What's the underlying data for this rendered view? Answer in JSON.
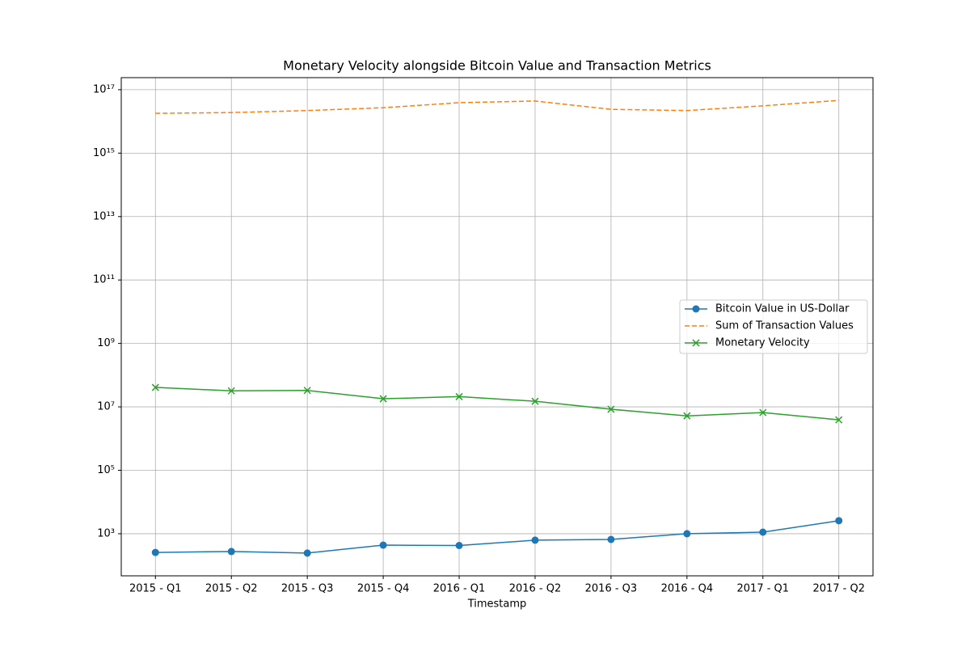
{
  "chart_data": {
    "type": "line",
    "title": "Monetary Velocity alongside Bitcoin Value and Transaction Metrics",
    "xlabel": "Timestamp",
    "categories": [
      "2015 - Q1",
      "2015 - Q2",
      "2015 - Q3",
      "2015 - Q4",
      "2016 - Q1",
      "2016 - Q2",
      "2016 - Q3",
      "2016 - Q4",
      "2017 - Q1",
      "2017 - Q2"
    ],
    "series": [
      {
        "name": "Bitcoin Value in US-Dollar",
        "color": "#1f77b4",
        "marker": "circle",
        "dash": "solid",
        "values": [
          257,
          275,
          245,
          437,
          425,
          625,
          660,
          1000,
          1120,
          2570
        ]
      },
      {
        "name": "Sum of Transaction Values",
        "color": "#ff7f0e",
        "marker": "none",
        "dash": "dashed",
        "values": [
          1.8e+16,
          1.9e+16,
          2.2e+16,
          2.7e+16,
          3.9e+16,
          4.4e+16,
          2.4e+16,
          2.2e+16,
          3.1e+16,
          4.6e+16
        ]
      },
      {
        "name": "Monetary Velocity",
        "color": "#2ca02c",
        "marker": "x",
        "dash": "solid",
        "values": [
          41000000.0,
          32000000.0,
          33000000.0,
          18000000.0,
          21000000.0,
          15000000.0,
          8400000.0,
          5200000.0,
          6600000.0,
          3900000.0
        ]
      }
    ],
    "yscale": "log",
    "ylim": [
      47,
      2.4e+17
    ],
    "yticks": [
      {
        "value": 1000.0,
        "label": "10³"
      },
      {
        "value": 100000.0,
        "label": "10⁵"
      },
      {
        "value": 10000000.0,
        "label": "10⁷"
      },
      {
        "value": 1000000000.0,
        "label": "10⁹"
      },
      {
        "value": 100000000000.0,
        "label": "10¹¹"
      },
      {
        "value": 10000000000000.0,
        "label": "10¹³"
      },
      {
        "value": 1000000000000000.0,
        "label": "10¹⁵"
      },
      {
        "value": 1e+17,
        "label": "10¹⁷"
      }
    ],
    "grid": true,
    "legend": "center right"
  }
}
